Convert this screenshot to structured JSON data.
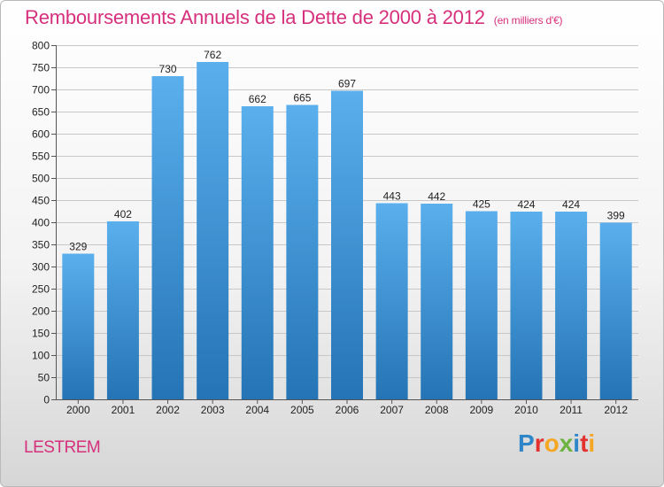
{
  "header": {
    "title": "Remboursements Annuels de la Dette de 2000 à 2012",
    "subtitle": "(en milliers d'€)"
  },
  "footer": {
    "commune": "LESTREM",
    "logo": {
      "letters": [
        {
          "char": "P",
          "color": "#2e86c9"
        },
        {
          "char": "r",
          "color": "#e2312f"
        },
        {
          "char": "o",
          "color": "#f5a623"
        },
        {
          "char": "x",
          "color": "#6cb33f"
        },
        {
          "char": "i",
          "color": "#2e86c9"
        },
        {
          "char": "t",
          "color": "#e2312f"
        },
        {
          "char": "i",
          "color": "#f5a623"
        }
      ]
    }
  },
  "colors": {
    "title": "#d6307c",
    "bar_top": "#5aafec",
    "bar_bottom": "#2574b5",
    "grid": "#c8c8c8"
  },
  "chart_data": {
    "type": "bar",
    "title": "Remboursements Annuels de la Dette de 2000 à 2012",
    "subtitle": "(en milliers d'€)",
    "categories": [
      "2000",
      "2001",
      "2002",
      "2003",
      "2004",
      "2005",
      "2006",
      "2007",
      "2008",
      "2009",
      "2010",
      "2011",
      "2012"
    ],
    "values": [
      329,
      402,
      730,
      762,
      662,
      665,
      697,
      443,
      442,
      425,
      424,
      424,
      399
    ],
    "ylim": [
      0,
      800
    ],
    "yticks": [
      0,
      50,
      100,
      150,
      200,
      250,
      300,
      350,
      400,
      450,
      500,
      550,
      600,
      650,
      700,
      750,
      800
    ],
    "grid": true,
    "xlabel": "",
    "ylabel": ""
  }
}
